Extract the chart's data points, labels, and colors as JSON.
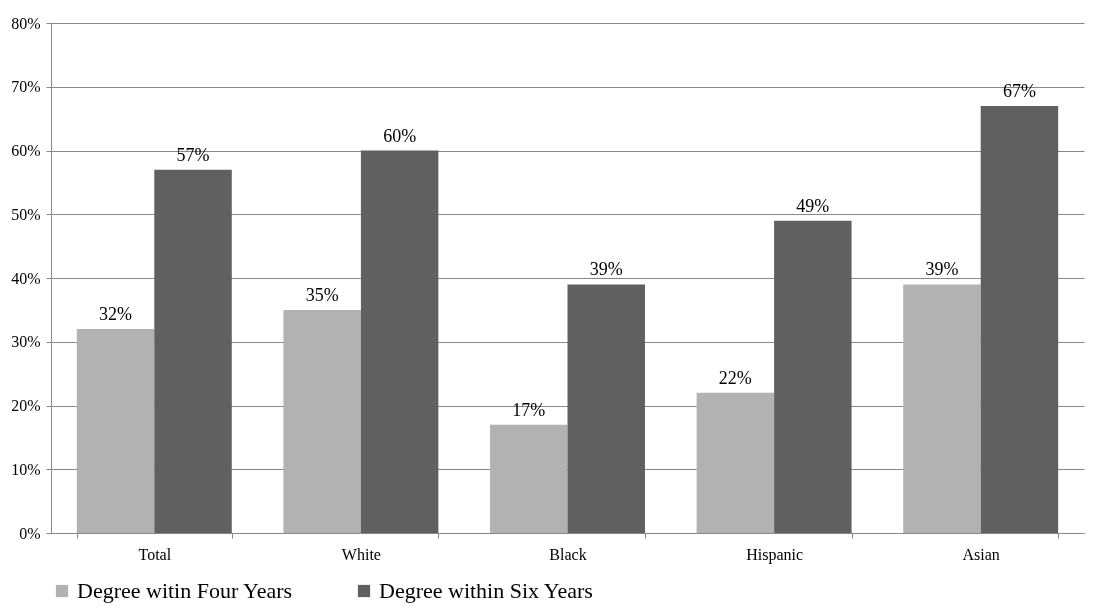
{
  "chart_data": {
    "type": "bar",
    "categories": [
      "Total",
      "White",
      "Black",
      "Hispanic",
      "Asian"
    ],
    "series": [
      {
        "name": "Degree witin Four Years",
        "color": "#b2b2b2",
        "values": [
          32,
          35,
          17,
          22,
          39
        ],
        "value_labels": [
          "32%",
          "35%",
          "17%",
          "22%",
          "39%"
        ]
      },
      {
        "name": "Degree within Six Years",
        "color": "#606060",
        "values": [
          57,
          60,
          39,
          49,
          67
        ],
        "value_labels": [
          "57%",
          "60%",
          "39%",
          "49%",
          "67%"
        ]
      }
    ],
    "ylim": [
      0,
      80
    ],
    "yticks": [
      {
        "value": 0,
        "label": "0%"
      },
      {
        "value": 10,
        "label": "10%"
      },
      {
        "value": 20,
        "label": "20%"
      },
      {
        "value": 30,
        "label": "30%"
      },
      {
        "value": 40,
        "label": "40%"
      },
      {
        "value": 50,
        "label": "50%"
      },
      {
        "value": 60,
        "label": "60%"
      },
      {
        "value": 70,
        "label": "70%"
      },
      {
        "value": 80,
        "label": "80%"
      }
    ],
    "grid": "y",
    "legend": "bottom"
  }
}
